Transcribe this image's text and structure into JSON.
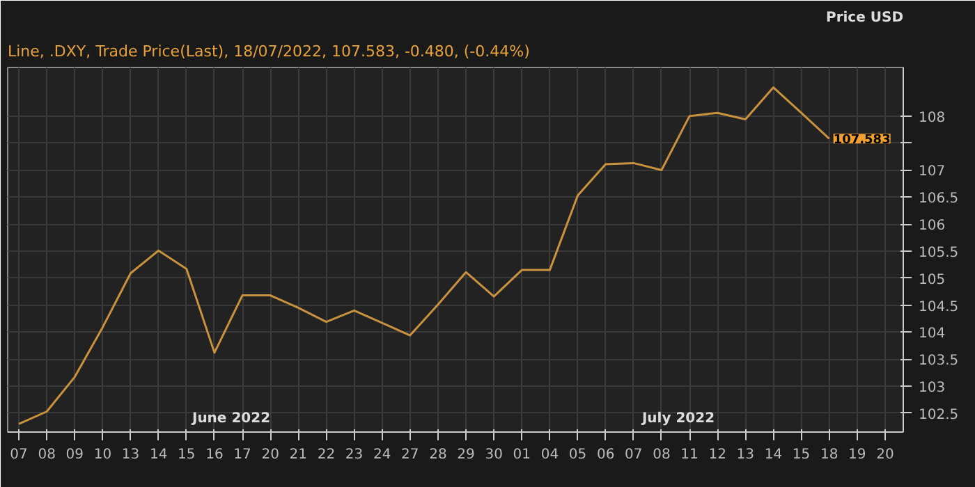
{
  "chart_data": {
    "type": "line",
    "title": "Line, .DXY, Trade Price(Last), 18/07/2022, 107.583, -0.480, (-0.44%)",
    "ylabel": "Price USD",
    "categories": [
      "07",
      "08",
      "09",
      "10",
      "13",
      "14",
      "15",
      "16",
      "17",
      "20",
      "21",
      "22",
      "23",
      "24",
      "27",
      "28",
      "29",
      "30",
      "01",
      "04",
      "05",
      "06",
      "07",
      "08",
      "11",
      "12",
      "13",
      "14",
      "15",
      "18",
      "19",
      "20"
    ],
    "series": [
      {
        "color": "#c8923e",
        "values": [
          102.3,
          102.53,
          103.17,
          104.09,
          105.09,
          105.51,
          105.17,
          103.62,
          104.68,
          104.68,
          104.45,
          104.19,
          104.4,
          104.17,
          103.94,
          104.51,
          105.11,
          104.66,
          105.15,
          105.15,
          106.53,
          107.11,
          107.13,
          107.0,
          108.0,
          108.06,
          107.94,
          108.53,
          108.06,
          107.58,
          null,
          null
        ]
      }
    ],
    "ylim": [
      102.15,
      108.9
    ],
    "yticks": [
      102.5,
      103,
      103.5,
      104,
      104.5,
      105,
      105.5,
      106,
      106.5,
      107,
      {
        "value": 107.5,
        "label": null
      },
      108
    ],
    "annotations": [
      "June 2022",
      "July 2022",
      {
        "text": "107.583",
        "x": "18",
        "y": 107.583
      }
    ],
    "grid": true,
    "line_style": "solid",
    "marker": "none"
  }
}
